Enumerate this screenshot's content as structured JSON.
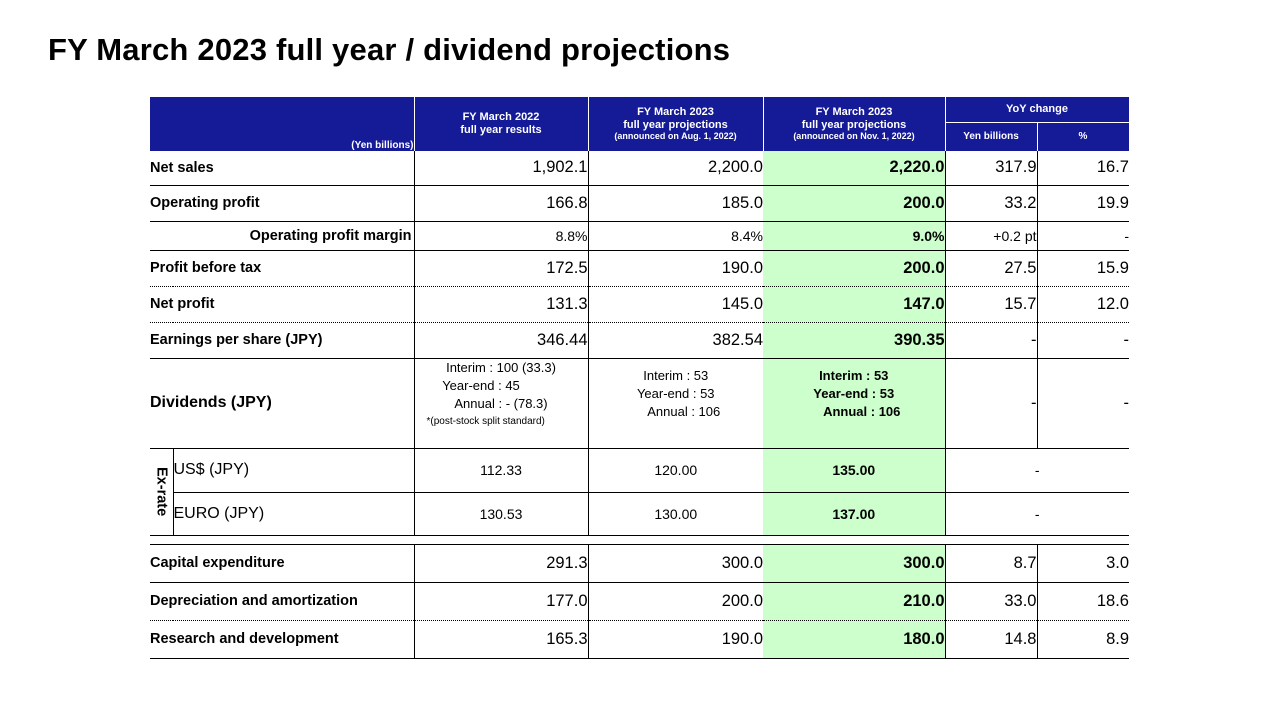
{
  "title": "FY March 2023 full year / dividend projections",
  "header": {
    "unit_label": "(Yen billions)",
    "col_2022": {
      "line1": "FY March 2022",
      "line2": "full year results"
    },
    "col_2023_aug": {
      "line1": "FY March 2023",
      "line2": "full year projections",
      "line3": "(announced on Aug. 1, 2022)"
    },
    "col_2023_nov": {
      "line1": "FY March 2023",
      "line2": "full year projections",
      "line3": "(announced on Nov. 1, 2022)"
    },
    "yoy": {
      "label": "YoY change",
      "yen": "Yen billions",
      "pct": "%"
    }
  },
  "rows": {
    "net_sales": {
      "label": "Net sales",
      "v2022": "1,902.1",
      "aug": "2,200.0",
      "nov": "2,220.0",
      "yen": "317.9",
      "pct": "16.7"
    },
    "op_profit": {
      "label": "Operating profit",
      "v2022": "166.8",
      "aug": "185.0",
      "nov": "200.0",
      "yen": "33.2",
      "pct": "19.9"
    },
    "op_margin": {
      "label": "Operating profit margin",
      "v2022": "8.8%",
      "aug": "8.4%",
      "nov": "9.0%",
      "yen": "+0.2 pt",
      "pct": "-"
    },
    "pbt": {
      "label": "Profit before tax",
      "v2022": "172.5",
      "aug": "190.0",
      "nov": "200.0",
      "yen": "27.5",
      "pct": "15.9"
    },
    "net_profit": {
      "label": "Net profit",
      "v2022": "131.3",
      "aug": "145.0",
      "nov": "147.0",
      "yen": "15.7",
      "pct": "12.0"
    },
    "eps": {
      "label": "Earnings per share (JPY)",
      "v2022": "346.44",
      "aug": "382.54",
      "nov": "390.35",
      "yen": "-",
      "pct": "-"
    },
    "dividends": {
      "label": "Dividends (JPY)",
      "v2022": {
        "interim": "Interim : 100 (33.3)",
        "yearend": "Year-end :   45",
        "annual": "Annual :   -   (78.3)",
        "note": "*(post-stock split standard)"
      },
      "aug": {
        "interim": "Interim : 53",
        "yearend": "Year-end : 53",
        "annual": "Annual : 106"
      },
      "nov": {
        "interim": "Interim  : 53",
        "yearend": "Year-end : 53",
        "annual": "Annual : 106"
      },
      "yen": "-",
      "pct": "-"
    },
    "exrate": {
      "label": "Ex-rate",
      "usd": {
        "label": "US$ (JPY)",
        "v2022": "112.33",
        "aug": "120.00",
        "nov": "135.00",
        "yoy": "-"
      },
      "euro": {
        "label": "EURO (JPY)",
        "v2022": "130.53",
        "aug": "130.00",
        "nov": "137.00",
        "yoy": "-"
      }
    },
    "capex": {
      "label": "Capital expenditure",
      "v2022": "291.3",
      "aug": "300.0",
      "nov": "300.0",
      "yen": "8.7",
      "pct": "3.0"
    },
    "dep": {
      "label": "Depreciation and amortization",
      "v2022": "177.0",
      "aug": "200.0",
      "nov": "210.0",
      "yen": "33.0",
      "pct": "18.6"
    },
    "rnd": {
      "label": "Research and development",
      "v2022": "165.3",
      "aug": "190.0",
      "nov": "180.0",
      "yen": "14.8",
      "pct": "8.9"
    }
  },
  "colors": {
    "header_bg": "#151a97",
    "highlight": "#ccffcc"
  }
}
